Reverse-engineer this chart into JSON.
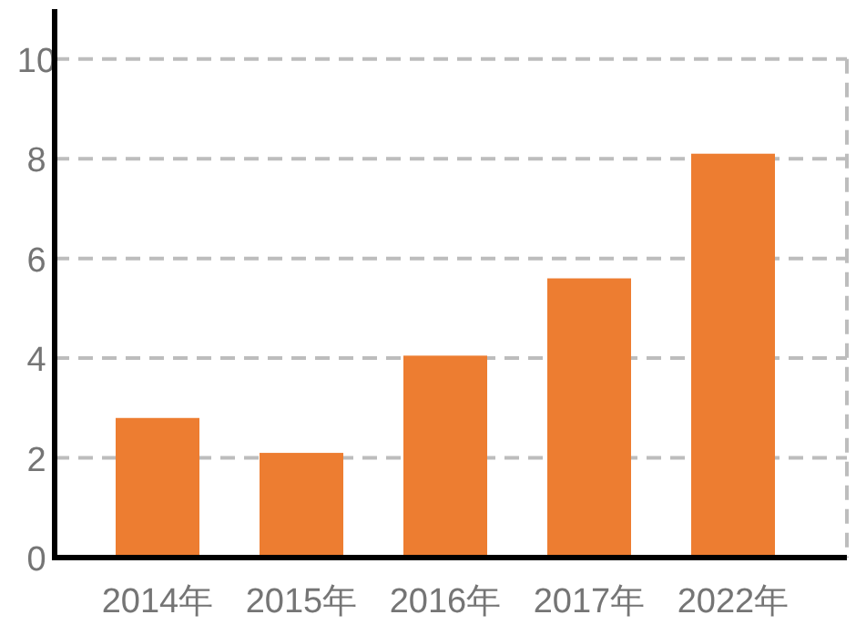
{
  "chart_data": {
    "type": "bar",
    "categories": [
      "2014年",
      "2015年",
      "2016年",
      "2017年",
      "2022年"
    ],
    "values": [
      2.8,
      2.1,
      4.05,
      5.6,
      8.1
    ],
    "color": "#ed7d31",
    "ylim": [
      0,
      11
    ],
    "yticks": [
      0,
      2,
      4,
      6,
      8,
      10
    ],
    "grid": "y"
  }
}
